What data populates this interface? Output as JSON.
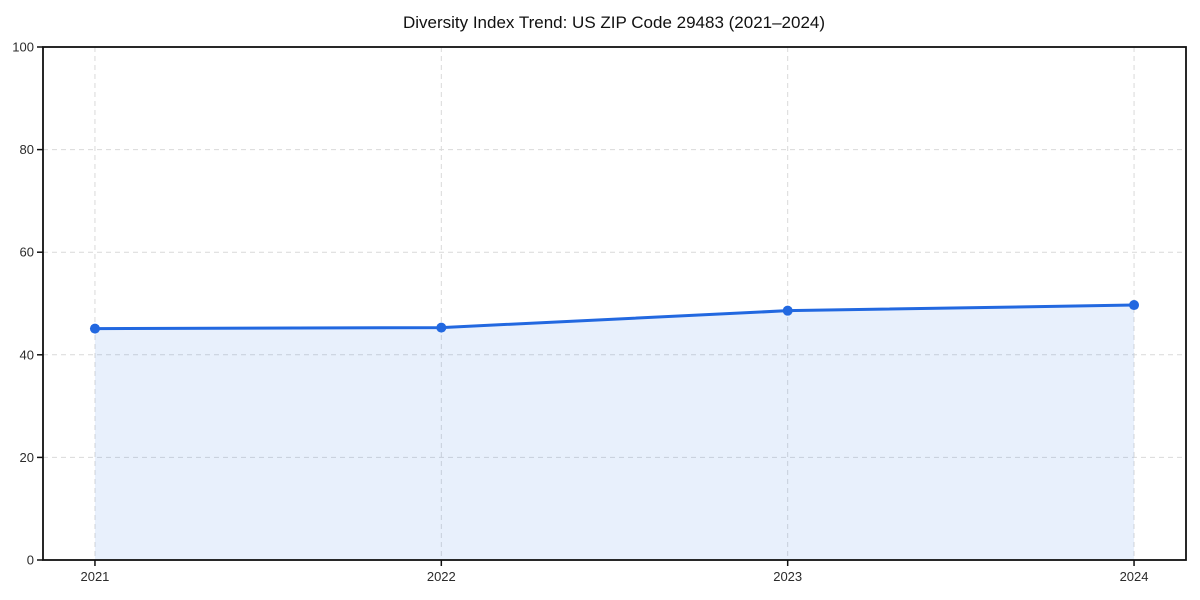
{
  "page": {
    "title": "Diversity Index Trend: US ZIP Code 29483 (2021–2024)"
  },
  "chart_data": {
    "type": "line",
    "title": "Diversity Index Trend: US ZIP Code 29483 (2021–2024)",
    "x": [
      "2021",
      "2022",
      "2023",
      "2024"
    ],
    "series": [
      {
        "name": "Diversity Index",
        "values": [
          45.1,
          45.3,
          48.6,
          49.7
        ]
      }
    ],
    "xlabel": "",
    "ylabel": "",
    "ylim": [
      0,
      100
    ],
    "yticks": [
      0,
      20,
      40,
      60,
      80,
      100
    ],
    "grid": true,
    "grid_style": "dashed",
    "legend": "none",
    "area_fill": true,
    "marker": "circle",
    "colors": {
      "line": "#2268e0",
      "fill": "rgba(34,104,224,0.10)",
      "grid": "#d9d9d9",
      "axis": "#111111",
      "tick_label": "#2b2b2b",
      "background": "#ffffff"
    }
  }
}
